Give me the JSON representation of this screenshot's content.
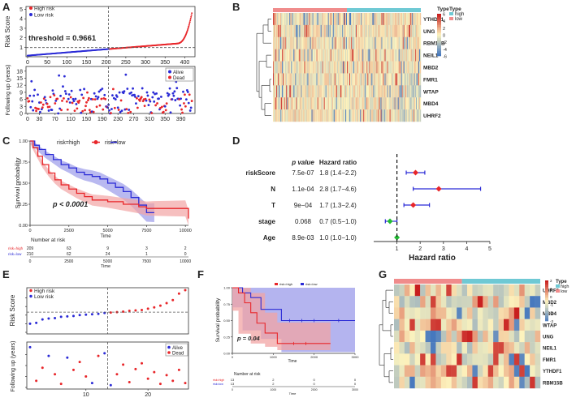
{
  "panel_labels": [
    "A",
    "B",
    "C",
    "D",
    "E",
    "F",
    "G"
  ],
  "colors": {
    "high": "#e8262a",
    "low": "#2b2bd6",
    "high_ci": "#f2a4a4",
    "low_ci": "#9b9bea",
    "ann_high": "#6fc9d4",
    "ann_low": "#f08c8c",
    "forest_ci": "#2b2bd6",
    "forest_pt_red": "#e8262a",
    "forest_pt_green": "#22bb33"
  },
  "chart_data": [
    {
      "panel": "A-top",
      "type": "scatter",
      "ylabel": "Risk Score",
      "yticks": [
        "1",
        "2",
        "3",
        "4",
        "5"
      ],
      "ylim": [
        0,
        5.3
      ],
      "xticks": [
        "0",
        "50",
        "100",
        "150",
        "200",
        "250",
        "300",
        "350",
        "400"
      ],
      "xlim": [
        0,
        430
      ],
      "threshold_label": "threshold = 0.9661",
      "threshold": 0.9661,
      "cutoff_index": 210,
      "legend": [
        "High risk",
        "Low risk"
      ]
    },
    {
      "panel": "A-bottom",
      "type": "scatter",
      "ylabel": "Following up (years)",
      "yticks": [
        "0",
        "3",
        "6",
        "9",
        "12",
        "15",
        "18"
      ],
      "ylim": [
        0,
        20
      ],
      "xticks": [
        "0",
        "30",
        "70",
        "110",
        "150",
        "190",
        "230",
        "270",
        "310",
        "350",
        "390"
      ],
      "legend": [
        "Alive",
        "Dead"
      ]
    },
    {
      "panel": "B",
      "type": "heatmap",
      "rows": [
        "YTHDF1",
        "UNG",
        "RBM15B",
        "NEIL1",
        "MBD2",
        "FMR1",
        "WTAP",
        "MBD4",
        "UHRF2"
      ],
      "legend_title": "Type",
      "legend_items": [
        "high",
        "low"
      ],
      "scale_ticks": [
        "6",
        "4",
        "2",
        "0",
        "-2",
        "-4",
        "-6"
      ]
    },
    {
      "panel": "C",
      "type": "line",
      "legend_title": "risk",
      "series": [
        {
          "name": "risk=high",
          "x": [
            0,
            200,
            500,
            800,
            1200,
            1600,
            2000,
            2500,
            3000,
            3500,
            4000,
            5000,
            6000,
            7000,
            7500,
            8000,
            9000,
            10000,
            10200
          ],
          "y": [
            1.0,
            0.92,
            0.82,
            0.72,
            0.62,
            0.54,
            0.48,
            0.43,
            0.38,
            0.34,
            0.3,
            0.28,
            0.25,
            0.22,
            0.2,
            0.2,
            0.2,
            0.2,
            0.08
          ]
        },
        {
          "name": "risk=low",
          "x": [
            0,
            300,
            600,
            1000,
            1500,
            2000,
            2500,
            3000,
            3500,
            4000,
            4500,
            5000,
            5500,
            6000,
            6500,
            7000,
            7500,
            8000
          ],
          "y": [
            1.0,
            0.95,
            0.9,
            0.84,
            0.78,
            0.72,
            0.68,
            0.63,
            0.6,
            0.58,
            0.55,
            0.5,
            0.45,
            0.4,
            0.33,
            0.24,
            0.15,
            0.15
          ]
        }
      ],
      "pvalue": "p < 0.0001",
      "xlabel": "Time",
      "ylabel": "Survival probability",
      "xticks": [
        "0",
        "2500",
        "5000",
        "7500",
        "10000"
      ],
      "yticks": [
        "0.00",
        "0.25",
        "0.50",
        "0.75",
        "1.00"
      ],
      "risk_table": {
        "title": "Number at risk",
        "rows": [
          {
            "label": "risk=high",
            "values": [
              "209",
              "63",
              "9",
              "3",
              "2"
            ]
          },
          {
            "label": "risk=low",
            "values": [
              "210",
              "62",
              "24",
              "1",
              "0"
            ]
          }
        ],
        "xlabel": "Time"
      }
    },
    {
      "panel": "D",
      "type": "forest",
      "headers": [
        "p value",
        "Hazard ratio"
      ],
      "rows": [
        {
          "name": "riskScore",
          "p": "7.5e-07",
          "hr_text": "1.8 (1.4−2.2)",
          "hr": 1.8,
          "lo": 1.4,
          "hi": 2.2
        },
        {
          "name": "N",
          "p": "1.1e-04",
          "hr_text": "2.8 (1.7−4.6)",
          "hr": 2.8,
          "lo": 1.7,
          "hi": 4.6
        },
        {
          "name": "T",
          "p": "9e−04",
          "hr_text": "1.7 (1.3−2.4)",
          "hr": 1.7,
          "lo": 1.3,
          "hi": 2.4
        },
        {
          "name": "stage",
          "p": "0.068",
          "hr_text": "0.7 (0.5−1.0)",
          "hr": 0.7,
          "lo": 0.5,
          "hi": 1.0
        },
        {
          "name": "Age",
          "p": "8.9e-03",
          "hr_text": "1.0 (1.0−1.0)",
          "hr": 1.0,
          "lo": 1.0,
          "hi": 1.0
        }
      ],
      "xticks": [
        "1",
        "2",
        "3",
        "4",
        "5"
      ],
      "xlabel": "Hazard ratio",
      "xlim": [
        0,
        5
      ]
    },
    {
      "panel": "E-top",
      "type": "scatter",
      "ylabel": "Risk Score",
      "legend": [
        "High risk",
        "Low risk"
      ],
      "cutoff_index": 13,
      "values": [
        0.2,
        0.22,
        0.3,
        0.32,
        0.33,
        0.36,
        0.37,
        0.38,
        0.4,
        0.41,
        0.42,
        0.43,
        0.45,
        0.46,
        0.47,
        0.48,
        0.5,
        0.51,
        0.52,
        0.55,
        0.58,
        0.62,
        0.68,
        0.75,
        0.9,
        0.98
      ]
    },
    {
      "panel": "E-bottom",
      "type": "scatter",
      "ylabel": "Following up (years)",
      "xticks": [
        "10",
        "20"
      ],
      "legend": [
        "Alive",
        "Dead"
      ],
      "points": [
        {
          "x": 1,
          "y": 0.92,
          "s": "alive"
        },
        {
          "x": 2,
          "y": 0.15,
          "s": "dead"
        },
        {
          "x": 3,
          "y": 0.45,
          "s": "dead"
        },
        {
          "x": 4,
          "y": 0.72,
          "s": "alive"
        },
        {
          "x": 5,
          "y": 0.3,
          "s": "dead"
        },
        {
          "x": 6,
          "y": 0.08,
          "s": "dead"
        },
        {
          "x": 7,
          "y": 0.68,
          "s": "alive"
        },
        {
          "x": 8,
          "y": 0.4,
          "s": "dead"
        },
        {
          "x": 9,
          "y": 0.58,
          "s": "dead"
        },
        {
          "x": 10,
          "y": 0.25,
          "s": "dead"
        },
        {
          "x": 11,
          "y": 0.1,
          "s": "alive"
        },
        {
          "x": 12,
          "y": 0.72,
          "s": "dead"
        },
        {
          "x": 13,
          "y": 0.78,
          "s": "alive"
        },
        {
          "x": 14,
          "y": 0.05,
          "s": "alive"
        },
        {
          "x": 15,
          "y": 0.3,
          "s": "dead"
        },
        {
          "x": 16,
          "y": 0.52,
          "s": "dead"
        },
        {
          "x": 17,
          "y": 0.12,
          "s": "dead"
        },
        {
          "x": 18,
          "y": 0.42,
          "s": "dead"
        },
        {
          "x": 19,
          "y": 0.55,
          "s": "dead"
        },
        {
          "x": 20,
          "y": 0.2,
          "s": "dead"
        },
        {
          "x": 21,
          "y": 0.35,
          "s": "dead"
        },
        {
          "x": 22,
          "y": 0.08,
          "s": "dead"
        },
        {
          "x": 23,
          "y": 0.28,
          "s": "dead"
        },
        {
          "x": 24,
          "y": 0.15,
          "s": "dead"
        },
        {
          "x": 25,
          "y": 0.4,
          "s": "dead"
        },
        {
          "x": 26,
          "y": 0.1,
          "s": "dead"
        }
      ]
    },
    {
      "panel": "F",
      "type": "line",
      "legend": [
        "risk=high",
        "risk=low"
      ],
      "series": [
        {
          "name": "risk=high",
          "x": [
            0,
            150,
            300,
            450,
            600,
            800,
            1100,
            1500,
            1900,
            2400
          ],
          "y": [
            1.0,
            0.92,
            0.77,
            0.62,
            0.46,
            0.31,
            0.15,
            0.15,
            0.15,
            0.15
          ]
        },
        {
          "name": "risk=low",
          "x": [
            0,
            250,
            450,
            700,
            1200,
            1700,
            2000,
            2500,
            3000
          ],
          "y": [
            1.0,
            0.92,
            0.85,
            0.67,
            0.5,
            0.5,
            0.5,
            0.5,
            0.5
          ]
        }
      ],
      "pvalue": "p = 0.04",
      "xlabel": "Time",
      "ylabel": "Survival probability",
      "xticks": [
        "0",
        "1000",
        "2000",
        "3000"
      ],
      "yticks": [
        "0.00",
        "0.25",
        "0.50",
        "0.75",
        "1.00"
      ],
      "risk_table": {
        "title": "Number at risk",
        "rows": [
          {
            "label": "risk=high",
            "values": [
              "13",
              "2",
              "0",
              "0"
            ]
          },
          {
            "label": "risk=low",
            "values": [
              "13",
              "2",
              "0",
              "0"
            ]
          }
        ],
        "xlabel": "Time"
      }
    },
    {
      "panel": "G",
      "type": "heatmap",
      "rows": [
        "UHRF2",
        "MBD2",
        "MBD4",
        "WTAP",
        "UNG",
        "NEIL1",
        "FMR1",
        "YTHDF1",
        "RBM15B"
      ],
      "legend_title": "Type",
      "legend_items": [
        "high",
        "low"
      ],
      "scale_ticks": [
        "2",
        "1",
        "0",
        "-1",
        "-2",
        "-3"
      ]
    }
  ]
}
